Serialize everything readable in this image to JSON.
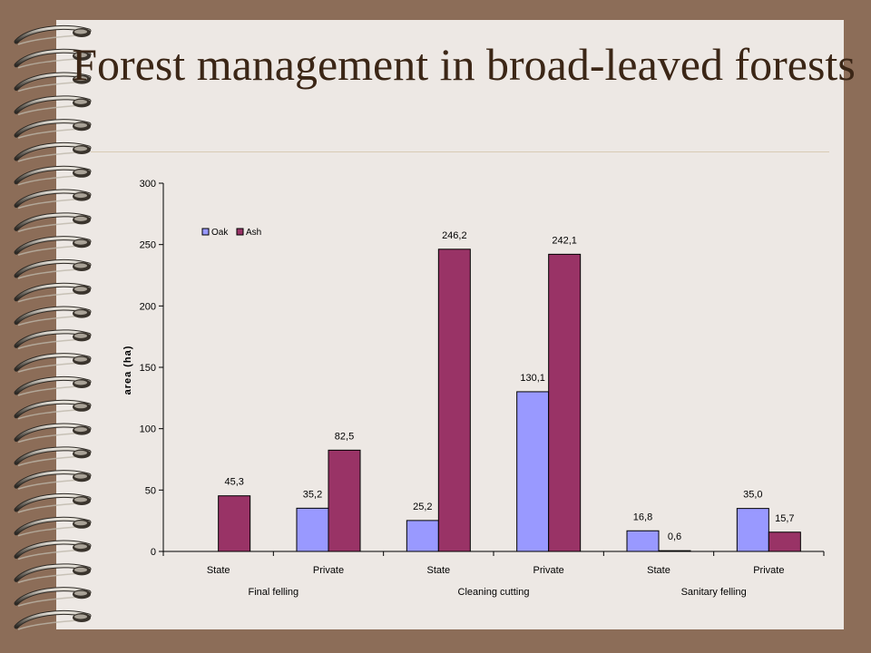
{
  "slide": {
    "title": "Forest management in broad-leaved forests"
  },
  "colors": {
    "page_background": "#8c6d58",
    "slide_background": "#ede8e4",
    "title_color": "#3b2616",
    "oak": "#9999ff",
    "ash": "#993366"
  },
  "chart_data": {
    "type": "bar",
    "ylabel": "area (ha)",
    "ylim": [
      0,
      300
    ],
    "yticks": [
      0,
      50,
      100,
      150,
      200,
      250,
      300
    ],
    "grid": false,
    "legend_position": "top-left",
    "categories": [
      "State",
      "Private",
      "State",
      "Private",
      "State",
      "Private"
    ],
    "groups": [
      {
        "label": "Final felling",
        "span": 2
      },
      {
        "label": "Cleaning cutting",
        "span": 2
      },
      {
        "label": "Sanitary felling",
        "span": 2
      }
    ],
    "series": [
      {
        "name": "Oak",
        "color": "#9999ff",
        "values": [
          null,
          35.2,
          25.2,
          130.1,
          16.8,
          35.0
        ],
        "labels": [
          "",
          "35,2",
          "25,2",
          "130,1",
          "16,8",
          "35,0"
        ]
      },
      {
        "name": "Ash",
        "color": "#993366",
        "values": [
          45.3,
          82.5,
          246.2,
          242.1,
          0.6,
          15.7
        ],
        "labels": [
          "45,3",
          "82,5",
          "246,2",
          "242,1",
          "0,6",
          "15,7"
        ]
      }
    ]
  }
}
